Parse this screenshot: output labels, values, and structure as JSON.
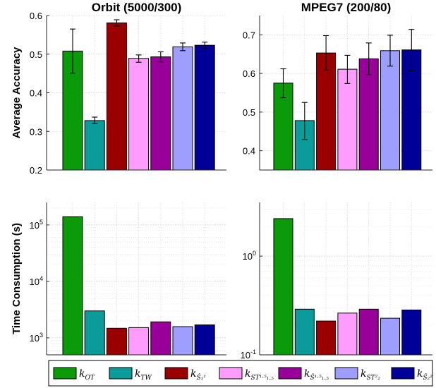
{
  "panels": [
    {
      "title": "Orbit (5000/300)",
      "ylabel": "Average Accuracy",
      "scale": "linear",
      "ylim": [
        0.2,
        0.6
      ],
      "ticks": [
        {
          "value": 0.2,
          "base": "0.2"
        },
        {
          "value": 0.3,
          "base": "0.3"
        },
        {
          "value": 0.4,
          "base": "0.4"
        },
        {
          "value": 0.5,
          "base": "0.5"
        },
        {
          "value": 0.6,
          "base": "0.6"
        }
      ],
      "values": [
        0.508,
        0.328,
        0.581,
        0.489,
        0.493,
        0.519,
        0.523
      ],
      "errors": [
        [
          0.451,
          0.565
        ],
        [
          0.32,
          0.337
        ],
        [
          0.573,
          0.589
        ],
        [
          0.479,
          0.498
        ],
        [
          0.48,
          0.506
        ],
        [
          0.509,
          0.529
        ],
        [
          0.514,
          0.531
        ]
      ]
    },
    {
      "title": "MPEG7 (200/80)",
      "ylabel": "",
      "scale": "linear",
      "ylim": [
        0.35,
        0.75
      ],
      "ticks": [
        {
          "value": 0.4,
          "base": "0.4"
        },
        {
          "value": 0.5,
          "base": "0.5"
        },
        {
          "value": 0.6,
          "base": "0.6"
        },
        {
          "value": 0.7,
          "base": "0.7"
        }
      ],
      "values": [
        0.575,
        0.478,
        0.653,
        0.611,
        0.638,
        0.659,
        0.661
      ],
      "errors": [
        [
          0.537,
          0.612
        ],
        [
          0.429,
          0.525
        ],
        [
          0.609,
          0.698
        ],
        [
          0.574,
          0.647
        ],
        [
          0.597,
          0.679
        ],
        [
          0.619,
          0.699
        ],
        [
          0.607,
          0.714
        ]
      ]
    },
    {
      "title": "",
      "ylabel": "Time Consumption (s)",
      "scale": "log",
      "ylim": [
        500,
        250000
      ],
      "ticks": [
        {
          "value": 1000,
          "base": "10",
          "exp": "3"
        },
        {
          "value": 10000,
          "base": "10",
          "exp": "4"
        },
        {
          "value": 100000,
          "base": "10",
          "exp": "5"
        }
      ],
      "values": [
        140000,
        3000,
        1480,
        1520,
        1920,
        1580,
        1700
      ],
      "errors": []
    },
    {
      "title": "",
      "ylabel": "",
      "scale": "log",
      "ylim": [
        0.1,
        3.5
      ],
      "ticks": [
        {
          "value": 0.1,
          "base": "10",
          "exp": "-1"
        },
        {
          "value": 1,
          "base": "10",
          "exp": "0"
        }
      ],
      "values": [
        2.4,
        0.29,
        0.22,
        0.265,
        0.29,
        0.235,
        0.285
      ],
      "errors": []
    }
  ],
  "legend": [
    {
      "label": "k",
      "sub": "OT",
      "color": "#0a9a0a"
    },
    {
      "label": "k",
      "sub": "TW",
      "color": "#0c9b9b"
    },
    {
      "label": "k",
      "sub": "Ŝ₁¹",
      "color": "#990000"
    },
    {
      "label": "k",
      "sub": "ST¹·⁵₁.₅",
      "color": "#ff9cff"
    },
    {
      "label": "k",
      "sub": "Ŝ¹·⁵₁.₅",
      "color": "#990099"
    },
    {
      "label": "k",
      "sub": "ST²₂",
      "color": "#9e9eff"
    },
    {
      "label": "k",
      "sub": "Ŝ₂²",
      "color": "#000099"
    }
  ],
  "chart_data": [
    {
      "type": "bar",
      "title": "Orbit (5000/300)",
      "ylabel": "Average Accuracy",
      "ylim": [
        0.2,
        0.6
      ],
      "series": [
        {
          "name": "k_OT",
          "values": [
            0.508
          ]
        },
        {
          "name": "k_TW",
          "values": [
            0.328
          ]
        },
        {
          "name": "k_Ŝ1",
          "values": [
            0.581
          ]
        },
        {
          "name": "k_ST1.5",
          "values": [
            0.489
          ]
        },
        {
          "name": "k_Ŝ1.5",
          "values": [
            0.493
          ]
        },
        {
          "name": "k_ST2",
          "values": [
            0.519
          ]
        },
        {
          "name": "k_Ŝ2",
          "values": [
            0.523
          ]
        }
      ]
    },
    {
      "type": "bar",
      "title": "MPEG7 (200/80)",
      "ylim": [
        0.35,
        0.75
      ],
      "series": [
        {
          "name": "k_OT",
          "values": [
            0.575
          ]
        },
        {
          "name": "k_TW",
          "values": [
            0.478
          ]
        },
        {
          "name": "k_Ŝ1",
          "values": [
            0.653
          ]
        },
        {
          "name": "k_ST1.5",
          "values": [
            0.611
          ]
        },
        {
          "name": "k_Ŝ1.5",
          "values": [
            0.638
          ]
        },
        {
          "name": "k_ST2",
          "values": [
            0.659
          ]
        },
        {
          "name": "k_Ŝ2",
          "values": [
            0.661
          ]
        }
      ]
    },
    {
      "type": "bar",
      "ylabel": "Time Consumption (s)",
      "yscale": "log",
      "ylim": [
        500,
        250000
      ],
      "series": [
        {
          "name": "k_OT",
          "values": [
            140000
          ]
        },
        {
          "name": "k_TW",
          "values": [
            3000
          ]
        },
        {
          "name": "k_Ŝ1",
          "values": [
            1480
          ]
        },
        {
          "name": "k_ST1.5",
          "values": [
            1520
          ]
        },
        {
          "name": "k_Ŝ1.5",
          "values": [
            1920
          ]
        },
        {
          "name": "k_ST2",
          "values": [
            1580
          ]
        },
        {
          "name": "k_Ŝ2",
          "values": [
            1700
          ]
        }
      ]
    },
    {
      "type": "bar",
      "yscale": "log",
      "ylim": [
        0.1,
        3.5
      ],
      "series": [
        {
          "name": "k_OT",
          "values": [
            2.4
          ]
        },
        {
          "name": "k_TW",
          "values": [
            0.29
          ]
        },
        {
          "name": "k_Ŝ1",
          "values": [
            0.22
          ]
        },
        {
          "name": "k_ST1.5",
          "values": [
            0.265
          ]
        },
        {
          "name": "k_Ŝ1.5",
          "values": [
            0.29
          ]
        },
        {
          "name": "k_ST2",
          "values": [
            0.235
          ]
        },
        {
          "name": "k_Ŝ2",
          "values": [
            0.285
          ]
        }
      ]
    }
  ]
}
